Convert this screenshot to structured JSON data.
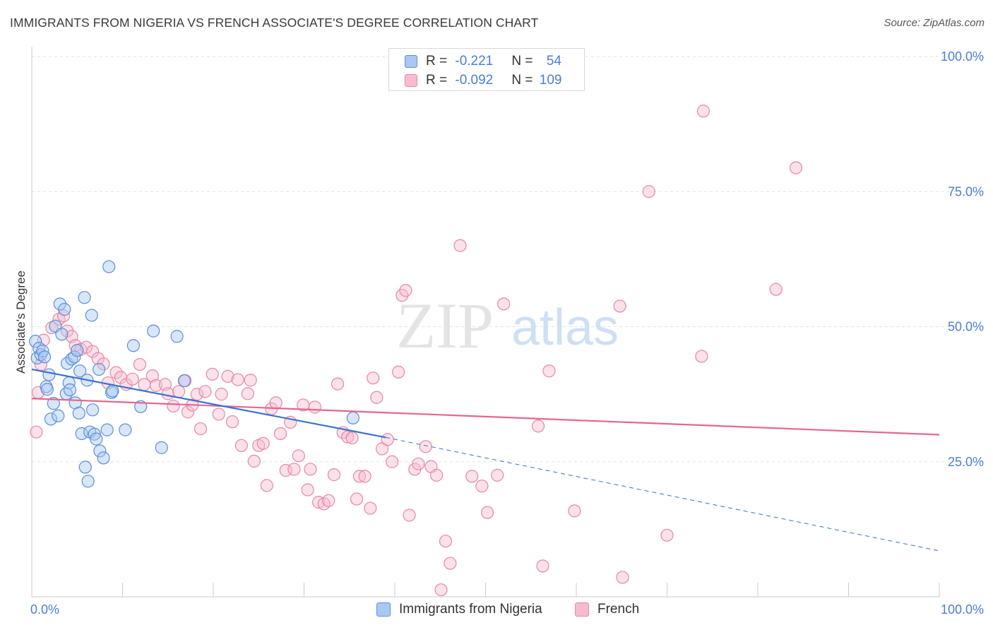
{
  "title": "IMMIGRANTS FROM NIGERIA VS FRENCH ASSOCIATE'S DEGREE CORRELATION CHART",
  "source": "Source: ZipAtlas.com",
  "watermark": {
    "zip": "ZIP",
    "atlas": "atlas"
  },
  "colors": {
    "blue": "#5b8fd8",
    "blue_fill": "#a9c8f2",
    "blue_line": "#3a72d0",
    "pink": "#e887a6",
    "pink_fill": "#f5bcd0",
    "pink_line": "#e5668f",
    "tick_label": "#4a7fd4",
    "grid": "#e2e2e2"
  },
  "legend_top": [
    {
      "r_label": "R = ",
      "r_value": "-0.221",
      "n_label": "N = ",
      "n_value": "54"
    },
    {
      "r_label": "R = ",
      "r_value": "-0.092",
      "n_label": "N = ",
      "n_value": "109"
    }
  ],
  "chart_data": {
    "type": "scatter",
    "title": "IMMIGRANTS FROM NIGERIA VS FRENCH ASSOCIATE'S DEGREE CORRELATION CHART",
    "xlabel": "",
    "ylabel": "Associate's Degree",
    "xlim": [
      0,
      100
    ],
    "ylim": [
      0,
      100
    ],
    "x_tick_labels": [
      "0.0%",
      "100.0%"
    ],
    "y_tick_labels": [
      "25.0%",
      "50.0%",
      "75.0%",
      "100.0%"
    ],
    "y_ticks": [
      25,
      50,
      75,
      100
    ],
    "grid": true,
    "legend_position": "bottom",
    "series": [
      {
        "name": "Immigrants from Nigeria",
        "color": "blue",
        "r": -0.221,
        "n": 54,
        "trend": {
          "x0": 0,
          "y0": 42.1,
          "x1": 39,
          "y1": 29.5,
          "dash_to_x": 100,
          "dash_to_y": 8.5
        },
        "points": [
          [
            0.4,
            47.3
          ],
          [
            0.6,
            44.2
          ],
          [
            0.8,
            46.0
          ],
          [
            1.0,
            44.8
          ],
          [
            1.2,
            45.5
          ],
          [
            1.4,
            44.4
          ],
          [
            1.6,
            38.9
          ],
          [
            1.7,
            38.4
          ],
          [
            1.9,
            41.1
          ],
          [
            2.1,
            32.9
          ],
          [
            2.4,
            35.8
          ],
          [
            2.6,
            50.1
          ],
          [
            2.9,
            33.5
          ],
          [
            3.1,
            54.2
          ],
          [
            3.3,
            48.6
          ],
          [
            3.6,
            53.2
          ],
          [
            3.8,
            37.6
          ],
          [
            3.9,
            43.2
          ],
          [
            4.1,
            39.6
          ],
          [
            4.2,
            38.3
          ],
          [
            4.4,
            44.0
          ],
          [
            4.7,
            44.4
          ],
          [
            4.8,
            35.9
          ],
          [
            5.0,
            45.6
          ],
          [
            5.2,
            34.0
          ],
          [
            5.3,
            41.8
          ],
          [
            5.5,
            30.2
          ],
          [
            5.8,
            55.4
          ],
          [
            5.9,
            24.0
          ],
          [
            6.1,
            40.1
          ],
          [
            6.2,
            21.4
          ],
          [
            6.4,
            30.5
          ],
          [
            6.6,
            52.1
          ],
          [
            6.7,
            34.6
          ],
          [
            6.9,
            30.1
          ],
          [
            7.1,
            29.2
          ],
          [
            7.4,
            42.1
          ],
          [
            7.5,
            27.0
          ],
          [
            7.9,
            25.7
          ],
          [
            8.3,
            30.9
          ],
          [
            8.5,
            61.1
          ],
          [
            8.8,
            37.8
          ],
          [
            8.9,
            38.1
          ],
          [
            10.3,
            30.9
          ],
          [
            11.2,
            46.5
          ],
          [
            12.0,
            35.2
          ],
          [
            13.4,
            49.2
          ],
          [
            14.3,
            27.6
          ],
          [
            16.0,
            48.2
          ],
          [
            16.8,
            40.0
          ],
          [
            35.4,
            33.1
          ]
        ]
      },
      {
        "name": "French",
        "color": "pink",
        "r": -0.092,
        "n": 109,
        "trend": {
          "x0": 0,
          "y0": 36.7,
          "x1": 100,
          "y1": 30.0
        },
        "points": [
          [
            0.5,
            30.5
          ],
          [
            0.7,
            37.8
          ],
          [
            1.0,
            43.0
          ],
          [
            1.3,
            47.5
          ],
          [
            2.2,
            49.8
          ],
          [
            3.0,
            51.4
          ],
          [
            3.5,
            52.0
          ],
          [
            3.9,
            49.2
          ],
          [
            4.4,
            48.2
          ],
          [
            4.8,
            46.5
          ],
          [
            5.4,
            45.8
          ],
          [
            6.0,
            46.2
          ],
          [
            6.7,
            45.4
          ],
          [
            7.3,
            44.1
          ],
          [
            7.9,
            43.1
          ],
          [
            8.4,
            39.6
          ],
          [
            9.3,
            41.5
          ],
          [
            9.8,
            40.6
          ],
          [
            10.4,
            39.3
          ],
          [
            11.1,
            40.3
          ],
          [
            11.9,
            43.0
          ],
          [
            12.4,
            39.3
          ],
          [
            13.3,
            40.9
          ],
          [
            13.7,
            39.1
          ],
          [
            14.7,
            39.3
          ],
          [
            15.0,
            37.6
          ],
          [
            15.6,
            35.3
          ],
          [
            16.2,
            38.0
          ],
          [
            16.9,
            40.0
          ],
          [
            17.2,
            34.2
          ],
          [
            17.7,
            35.5
          ],
          [
            18.2,
            37.5
          ],
          [
            18.6,
            31.1
          ],
          [
            19.1,
            38.0
          ],
          [
            19.9,
            41.2
          ],
          [
            20.6,
            33.8
          ],
          [
            20.9,
            37.5
          ],
          [
            21.6,
            40.8
          ],
          [
            22.1,
            32.4
          ],
          [
            22.7,
            40.2
          ],
          [
            23.1,
            28.0
          ],
          [
            23.8,
            37.6
          ],
          [
            24.1,
            40.1
          ],
          [
            24.5,
            25.1
          ],
          [
            25.0,
            28.0
          ],
          [
            25.5,
            28.4
          ],
          [
            25.9,
            20.6
          ],
          [
            26.4,
            34.8
          ],
          [
            26.9,
            35.9
          ],
          [
            27.4,
            30.2
          ],
          [
            28.0,
            23.4
          ],
          [
            28.5,
            32.3
          ],
          [
            28.9,
            23.6
          ],
          [
            29.4,
            26.1
          ],
          [
            29.9,
            35.5
          ],
          [
            30.4,
            19.8
          ],
          [
            30.7,
            23.6
          ],
          [
            31.2,
            35.1
          ],
          [
            31.6,
            17.5
          ],
          [
            32.2,
            17.2
          ],
          [
            32.7,
            17.8
          ],
          [
            33.3,
            22.6
          ],
          [
            33.7,
            39.4
          ],
          [
            34.3,
            30.4
          ],
          [
            34.8,
            29.6
          ],
          [
            35.3,
            29.4
          ],
          [
            35.8,
            18.1
          ],
          [
            36.1,
            22.3
          ],
          [
            36.7,
            22.3
          ],
          [
            37.3,
            16.4
          ],
          [
            37.6,
            40.5
          ],
          [
            38.0,
            36.9
          ],
          [
            38.6,
            27.4
          ],
          [
            39.2,
            29.1
          ],
          [
            39.7,
            25.0
          ],
          [
            40.4,
            41.6
          ],
          [
            40.8,
            55.8
          ],
          [
            41.2,
            56.7
          ],
          [
            41.6,
            15.1
          ],
          [
            42.2,
            23.6
          ],
          [
            42.6,
            24.6
          ],
          [
            43.4,
            27.8
          ],
          [
            44.0,
            24.1
          ],
          [
            44.6,
            22.5
          ],
          [
            45.1,
            1.3
          ],
          [
            45.6,
            10.3
          ],
          [
            46.1,
            6.2
          ],
          [
            47.2,
            65.0
          ],
          [
            48.5,
            22.3
          ],
          [
            49.6,
            20.5
          ],
          [
            50.2,
            15.6
          ],
          [
            51.3,
            22.5
          ],
          [
            52.0,
            54.2
          ],
          [
            55.8,
            31.6
          ],
          [
            56.3,
            5.7
          ],
          [
            57.0,
            41.8
          ],
          [
            59.8,
            15.9
          ],
          [
            65.1,
            3.6
          ],
          [
            64.8,
            53.8
          ],
          [
            68.0,
            75.0
          ],
          [
            70.0,
            11.4
          ],
          [
            73.8,
            44.5
          ],
          [
            74.0,
            89.9
          ],
          [
            82.0,
            56.9
          ],
          [
            84.2,
            79.4
          ]
        ]
      }
    ]
  }
}
